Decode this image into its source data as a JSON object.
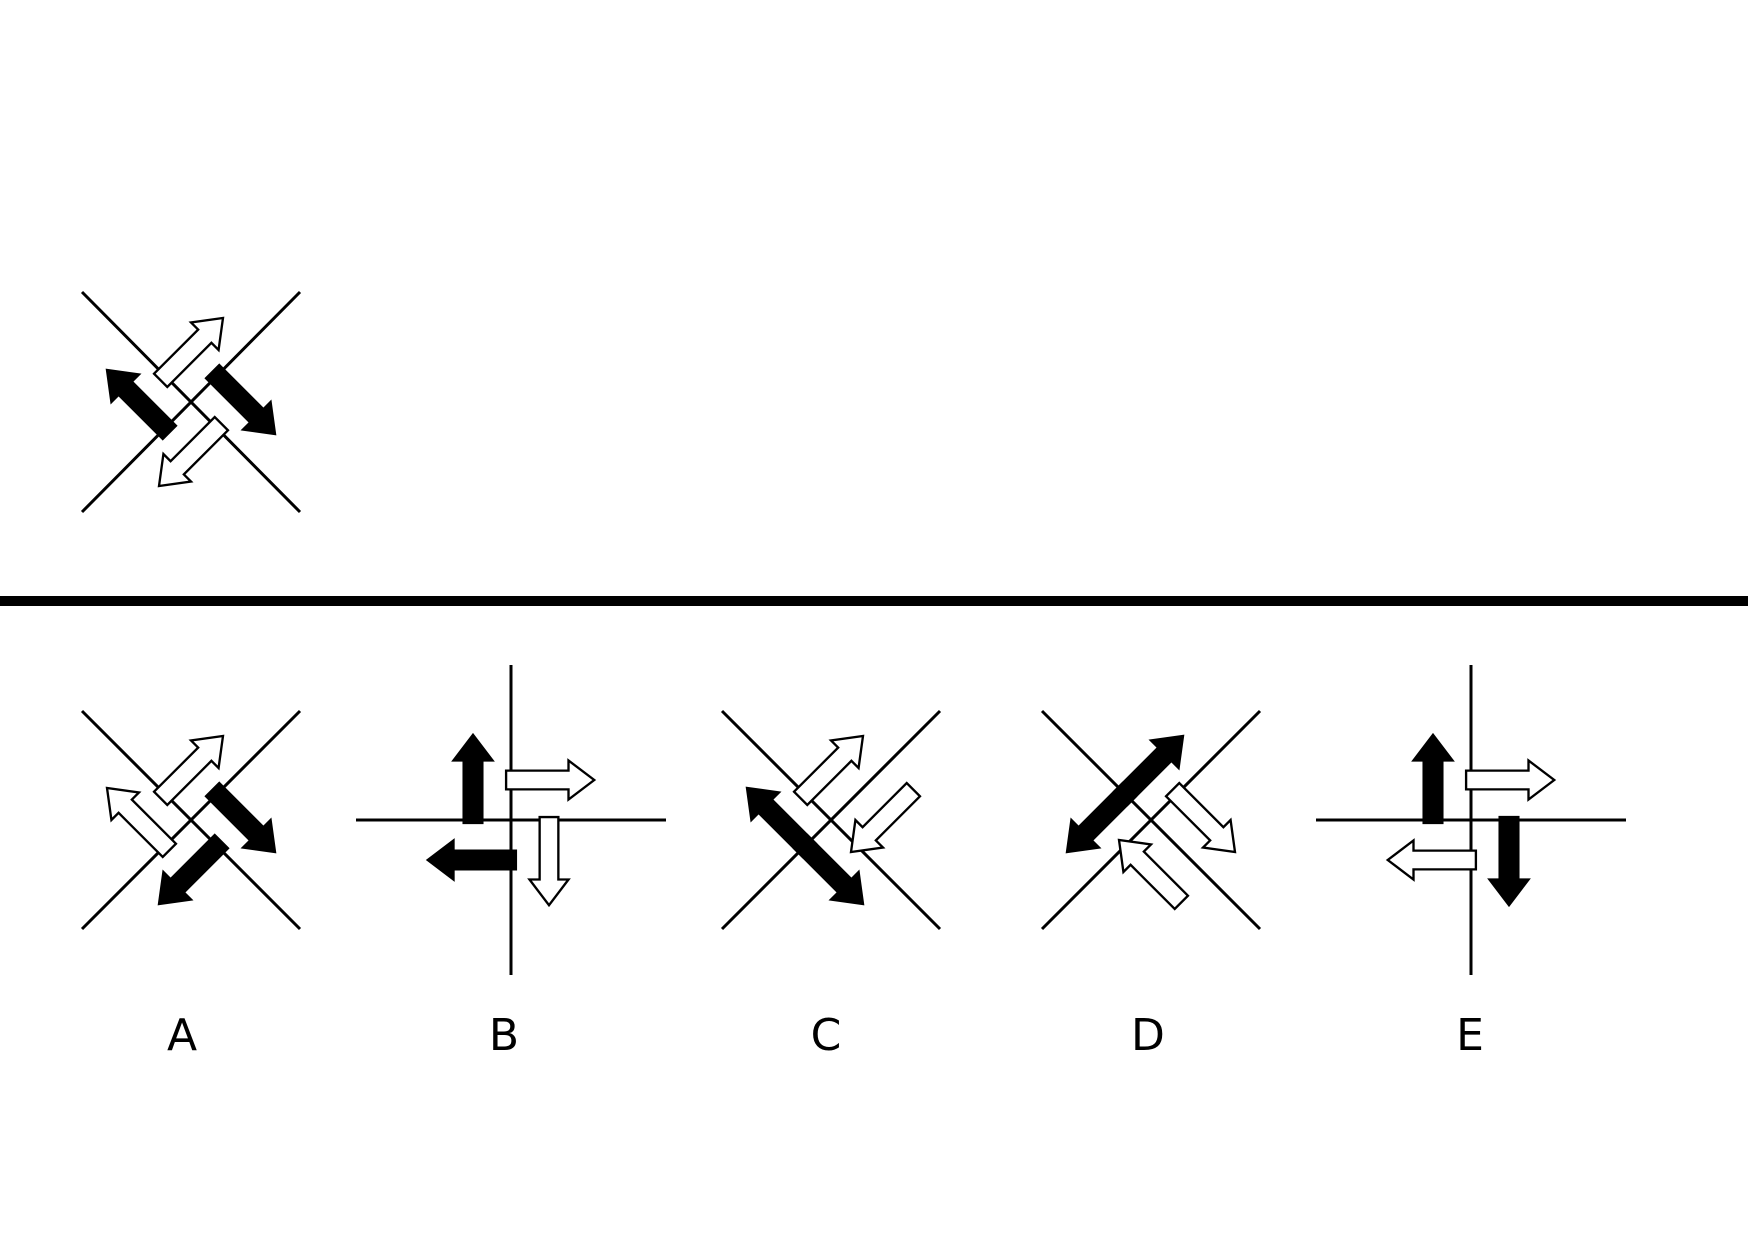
{
  "question": {
    "figure": {
      "lines": "diagonal",
      "arrows": [
        {
          "quadrant": "left",
          "direction": "up-left",
          "fill": "black"
        },
        {
          "quadrant": "top",
          "direction": "up-right",
          "fill": "white"
        },
        {
          "quadrant": "right",
          "direction": "down-right",
          "fill": "black"
        },
        {
          "quadrant": "bottom",
          "direction": "down-left",
          "fill": "white"
        }
      ]
    }
  },
  "options": [
    {
      "label": "A",
      "lines": "diagonal",
      "arrows": [
        {
          "quadrant": "left",
          "direction": "up-left",
          "fill": "white"
        },
        {
          "quadrant": "top",
          "direction": "up-right",
          "fill": "white"
        },
        {
          "quadrant": "right",
          "direction": "down-right",
          "fill": "black"
        },
        {
          "quadrant": "bottom",
          "direction": "down-left",
          "fill": "black"
        }
      ]
    },
    {
      "label": "B",
      "lines": "orthogonal",
      "arrows": [
        {
          "quadrant": "top-left",
          "direction": "up",
          "fill": "black"
        },
        {
          "quadrant": "top-right",
          "direction": "right",
          "fill": "white"
        },
        {
          "quadrant": "bottom-right",
          "direction": "down",
          "fill": "white"
        },
        {
          "quadrant": "bottom-left",
          "direction": "left",
          "fill": "black"
        }
      ]
    },
    {
      "label": "C",
      "lines": "diagonal",
      "arrows": [
        {
          "quadrant": "left",
          "direction": "up-left",
          "fill": "black"
        },
        {
          "quadrant": "top",
          "direction": "up-right",
          "fill": "white"
        },
        {
          "quadrant": "right",
          "direction": "down-left",
          "fill": "white"
        },
        {
          "quadrant": "bottom",
          "direction": "down-right",
          "fill": "black"
        }
      ]
    },
    {
      "label": "D",
      "lines": "diagonal",
      "arrows": [
        {
          "quadrant": "top",
          "direction": "up-right",
          "fill": "black"
        },
        {
          "quadrant": "left",
          "direction": "down-left",
          "fill": "black"
        },
        {
          "quadrant": "right",
          "direction": "down-right",
          "fill": "white"
        },
        {
          "quadrant": "bottom",
          "direction": "up-left",
          "fill": "white"
        }
      ]
    },
    {
      "label": "E",
      "lines": "orthogonal",
      "arrows": [
        {
          "quadrant": "top-left",
          "direction": "up",
          "fill": "black"
        },
        {
          "quadrant": "top-right",
          "direction": "right",
          "fill": "white"
        },
        {
          "quadrant": "bottom-left",
          "direction": "left",
          "fill": "white"
        },
        {
          "quadrant": "bottom-right",
          "direction": "down",
          "fill": "black"
        }
      ]
    }
  ]
}
